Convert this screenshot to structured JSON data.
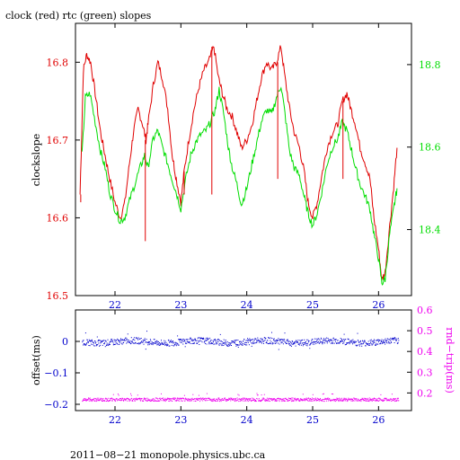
{
  "chart_data": [
    {
      "type": "line",
      "title": "clock (red) rtc (green) slopes",
      "ylabel": "clockslope",
      "x_ticks": [
        "22",
        "23",
        "24",
        "25",
        "26"
      ],
      "x_range": [
        21.4,
        26.5
      ],
      "y_left_ticks": [
        "16.5",
        "16.6",
        "16.7",
        "16.8"
      ],
      "y_left_range": [
        16.5,
        16.85
      ],
      "y_right_ticks": [
        "18.4",
        "18.6",
        "18.8"
      ],
      "y_right_range": [
        18.24,
        18.9
      ],
      "grid": false,
      "series": [
        {
          "color": "#e00000",
          "axis": "left",
          "points": [
            [
              21.47,
              16.63
            ],
            [
              21.52,
              16.79
            ],
            [
              21.57,
              16.81
            ],
            [
              21.63,
              16.8
            ],
            [
              21.7,
              16.76
            ],
            [
              21.78,
              16.71
            ],
            [
              21.85,
              16.68
            ],
            [
              21.92,
              16.65
            ],
            [
              22.0,
              16.62
            ],
            [
              22.08,
              16.6
            ],
            [
              22.15,
              16.62
            ],
            [
              22.22,
              16.67
            ],
            [
              22.28,
              16.71
            ],
            [
              22.35,
              16.74
            ],
            [
              22.42,
              16.72
            ],
            [
              22.47,
              16.7
            ],
            [
              22.5,
              16.72
            ],
            [
              22.58,
              16.77
            ],
            [
              22.65,
              16.8
            ],
            [
              22.72,
              16.78
            ],
            [
              22.8,
              16.74
            ],
            [
              22.87,
              16.68
            ],
            [
              22.93,
              16.65
            ],
            [
              23.0,
              16.62
            ],
            [
              23.05,
              16.66
            ],
            [
              23.12,
              16.7
            ],
            [
              23.2,
              16.74
            ],
            [
              23.28,
              16.77
            ],
            [
              23.35,
              16.79
            ],
            [
              23.42,
              16.8
            ],
            [
              23.5,
              16.82
            ],
            [
              23.57,
              16.78
            ],
            [
              23.63,
              16.76
            ],
            [
              23.7,
              16.74
            ],
            [
              23.78,
              16.73
            ],
            [
              23.85,
              16.71
            ],
            [
              23.92,
              16.69
            ],
            [
              24.0,
              16.7
            ],
            [
              24.08,
              16.72
            ],
            [
              24.15,
              16.75
            ],
            [
              24.22,
              16.78
            ],
            [
              24.3,
              16.8
            ],
            [
              24.38,
              16.79
            ],
            [
              24.45,
              16.8
            ],
            [
              24.52,
              16.82
            ],
            [
              24.58,
              16.78
            ],
            [
              24.65,
              16.74
            ],
            [
              24.72,
              16.71
            ],
            [
              24.8,
              16.69
            ],
            [
              24.87,
              16.66
            ],
            [
              24.93,
              16.62
            ],
            [
              25.0,
              16.6
            ],
            [
              25.07,
              16.62
            ],
            [
              25.15,
              16.66
            ],
            [
              25.22,
              16.69
            ],
            [
              25.3,
              16.71
            ],
            [
              25.38,
              16.72
            ],
            [
              25.45,
              16.75
            ],
            [
              25.52,
              16.76
            ],
            [
              25.58,
              16.74
            ],
            [
              25.65,
              16.72
            ],
            [
              25.72,
              16.69
            ],
            [
              25.8,
              16.67
            ],
            [
              25.87,
              16.65
            ],
            [
              25.93,
              16.6
            ],
            [
              26.0,
              16.56
            ],
            [
              26.05,
              16.52
            ],
            [
              26.1,
              16.53
            ],
            [
              26.17,
              16.59
            ],
            [
              26.23,
              16.64
            ],
            [
              26.28,
              16.69
            ]
          ]
        },
        {
          "color": "#00dd00",
          "axis": "right",
          "points": [
            [
              21.5,
              18.58
            ],
            [
              21.55,
              18.72
            ],
            [
              21.62,
              18.73
            ],
            [
              21.7,
              18.66
            ],
            [
              21.78,
              18.59
            ],
            [
              21.85,
              18.55
            ],
            [
              21.92,
              18.49
            ],
            [
              22.0,
              18.45
            ],
            [
              22.08,
              18.42
            ],
            [
              22.15,
              18.43
            ],
            [
              22.22,
              18.47
            ],
            [
              22.3,
              18.51
            ],
            [
              22.38,
              18.55
            ],
            [
              22.45,
              18.58
            ],
            [
              22.5,
              18.55
            ],
            [
              22.58,
              18.62
            ],
            [
              22.65,
              18.64
            ],
            [
              22.72,
              18.6
            ],
            [
              22.8,
              18.56
            ],
            [
              22.87,
              18.52
            ],
            [
              22.93,
              18.49
            ],
            [
              23.0,
              18.45
            ],
            [
              23.07,
              18.52
            ],
            [
              23.15,
              18.58
            ],
            [
              23.22,
              18.61
            ],
            [
              23.3,
              18.63
            ],
            [
              23.38,
              18.64
            ],
            [
              23.45,
              18.66
            ],
            [
              23.52,
              18.69
            ],
            [
              23.58,
              18.74
            ],
            [
              23.65,
              18.68
            ],
            [
              23.72,
              18.6
            ],
            [
              23.78,
              18.55
            ],
            [
              23.85,
              18.51
            ],
            [
              23.92,
              18.46
            ],
            [
              24.0,
              18.5
            ],
            [
              24.08,
              18.56
            ],
            [
              24.15,
              18.61
            ],
            [
              24.22,
              18.66
            ],
            [
              24.3,
              18.69
            ],
            [
              24.38,
              18.68
            ],
            [
              24.45,
              18.72
            ],
            [
              24.52,
              18.75
            ],
            [
              24.58,
              18.68
            ],
            [
              24.65,
              18.59
            ],
            [
              24.72,
              18.55
            ],
            [
              24.8,
              18.53
            ],
            [
              24.87,
              18.48
            ],
            [
              24.93,
              18.44
            ],
            [
              25.0,
              18.41
            ],
            [
              25.07,
              18.44
            ],
            [
              25.15,
              18.5
            ],
            [
              25.22,
              18.56
            ],
            [
              25.3,
              18.6
            ],
            [
              25.38,
              18.62
            ],
            [
              25.45,
              18.66
            ],
            [
              25.52,
              18.64
            ],
            [
              25.58,
              18.6
            ],
            [
              25.65,
              18.55
            ],
            [
              25.72,
              18.51
            ],
            [
              25.8,
              18.48
            ],
            [
              25.87,
              18.45
            ],
            [
              25.93,
              18.39
            ],
            [
              26.0,
              18.33
            ],
            [
              26.05,
              18.27
            ],
            [
              26.1,
              18.28
            ],
            [
              26.17,
              18.39
            ],
            [
              26.23,
              18.45
            ],
            [
              26.28,
              18.5
            ]
          ]
        }
      ],
      "spikes_left": [
        [
          21.48,
          16.62
        ],
        [
          22.46,
          16.57
        ],
        [
          23.05,
          16.63
        ],
        [
          23.47,
          16.63
        ],
        [
          24.47,
          16.65
        ],
        [
          25.46,
          16.65
        ],
        [
          26.07,
          16.52
        ]
      ]
    },
    {
      "type": "scatter",
      "ylabel_left": "offset(ms)",
      "ylabel_right": "rnd−trip(ms)",
      "x_ticks": [
        "22",
        "23",
        "24",
        "25",
        "26"
      ],
      "x_range": [
        21.4,
        26.5
      ],
      "y_left_ticks": [
        "0",
        "−0.1",
        "−0.2"
      ],
      "y_left_range": [
        -0.22,
        0.1
      ],
      "y_right_ticks": [
        "0.2",
        "0.3",
        "0.4",
        "0.5",
        "0.6"
      ],
      "y_right_range": [
        0.115,
        0.6
      ],
      "grid": false,
      "series": [
        {
          "color": "#0000cc",
          "axis": "left",
          "x_range": [
            21.5,
            26.3
          ],
          "center_y": 0.0,
          "spread_y": 0.01,
          "outlier_range": [
            -0.025,
            0.035
          ]
        },
        {
          "color": "#ee00ee",
          "axis": "right",
          "x_range": [
            21.5,
            26.3
          ],
          "center_y": 0.17,
          "spread_y": 0.008,
          "outlier_range": [
            0.19,
            0.2
          ]
        }
      ]
    }
  ],
  "footer": "2011−08−21  monopole.physics.ubc.ca",
  "colors": {
    "red": "#e00000",
    "green": "#00dd00",
    "blue": "#0000cc",
    "magenta": "#ee00ee",
    "axis": "#000000"
  }
}
